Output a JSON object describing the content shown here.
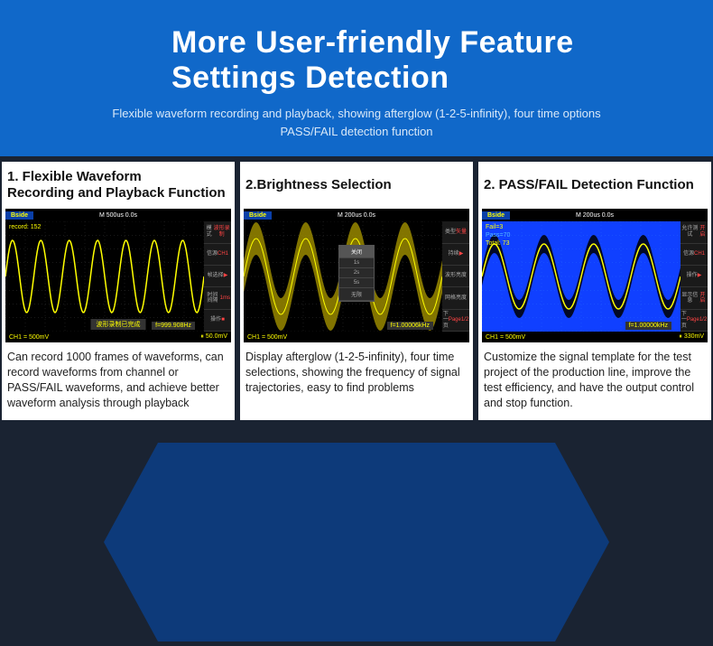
{
  "hero": {
    "title_line1": "More User-friendly Feature",
    "title_line2": "Settings Detection",
    "sub1": "Flexible waveform recording and playback, showing afterglow (1-2-5-infinity), four time options",
    "sub2": "PASS/FAIL detection function",
    "bg_color": "#1068c9",
    "text_color": "#ffffff"
  },
  "cards": [
    {
      "title": "1. Flexible Waveform\nRecording and Playback Function",
      "desc": "Can record 1000 frames of waveforms, can record waveforms from channel or PASS/FAIL waveforms, and achieve better waveform analysis through playback",
      "scope": {
        "type": "oscilloscope",
        "logo": "Bside",
        "timebase": "M 500us   0.0s",
        "ch_label": "CH1 = 500mV",
        "freq": "f=999.908Hz",
        "delay_icon": "⏸  50.0mV",
        "plot_bg": "#000000",
        "overlay": [
          {
            "text": "record: 152",
            "color": "#ff0"
          }
        ],
        "record_status": "波形录制已完成",
        "menu": [
          "模式\n波形录制",
          "信源\nCH1",
          "帧选择\n▶",
          "时间间隔\n1ms",
          "操作\n■"
        ],
        "waveforms": [
          {
            "color": "#ffff00",
            "width": 1.5,
            "fill": "none",
            "amplitude": 40,
            "periods": 7,
            "phase": 0,
            "y_offset": 0,
            "band": false
          }
        ],
        "grid_color": "#333333"
      }
    },
    {
      "title": "2.Brightness Selection",
      "desc": "Display afterglow (1-2-5-infinity), four time selections, showing the frequency of signal trajectories, easy to find problems",
      "scope": {
        "type": "oscilloscope",
        "logo": "Bside",
        "timebase": "M 200us   0.0s",
        "ch_label": "CH1 = 500mV",
        "freq": "f=1.00006kHz",
        "delay_icon": "",
        "plot_bg": "#000000",
        "menu_title": "DISPLAY",
        "menu": [
          "类型\n矢量",
          "持续\n▶",
          "波形亮度",
          "网格亮度",
          "下一页\nPage1/2"
        ],
        "popup": {
          "items": [
            "关闭",
            "1s",
            "2s",
            "5s",
            "无限"
          ],
          "selected": 0
        },
        "waveforms": [
          {
            "color": "#ffff00",
            "width": 1,
            "fill": "none",
            "amplitude": 42,
            "periods": 4,
            "phase": 0,
            "y_offset": 0,
            "band": true,
            "band_color": "#998800",
            "band_spread": 18
          }
        ],
        "grid_color": "#333333"
      }
    },
    {
      "title": "2. PASS/FAIL Detection Function",
      "desc": "Customize the signal template for the test project of the production line, improve the test efficiency, and have the output control and stop function.",
      "scope": {
        "type": "oscilloscope",
        "logo": "Bside",
        "timebase": "M 200us   0.0s",
        "ch_label": "CH1 = 500mV",
        "freq": "f=1.00000kHz",
        "delay_icon": "⏸  330mV",
        "plot_bg": "#1040ff",
        "menu_title": "PASS/FAIL",
        "overlay": [
          {
            "text": "Fail=3",
            "color": "#ff0"
          },
          {
            "text": "Pass=70",
            "color": "#5bf"
          },
          {
            "text": "Total: 73",
            "color": "#ff0"
          }
        ],
        "menu": [
          "允许测试\n开启",
          "信源\nCH1",
          "操作\n▶",
          "显示信息\n开启",
          "下一页\nPage1/2"
        ],
        "waveforms": [
          {
            "color": "#ffff00",
            "width": 1.5,
            "fill": "none",
            "amplitude": 36,
            "periods": 4,
            "phase": 0,
            "y_offset": 0,
            "band": true,
            "band_color": "#000000",
            "band_spread": 10
          }
        ],
        "grid_color": "#2060ff"
      }
    }
  ],
  "page_bg": "#1a2332",
  "shape_color": "#0d3a7a"
}
